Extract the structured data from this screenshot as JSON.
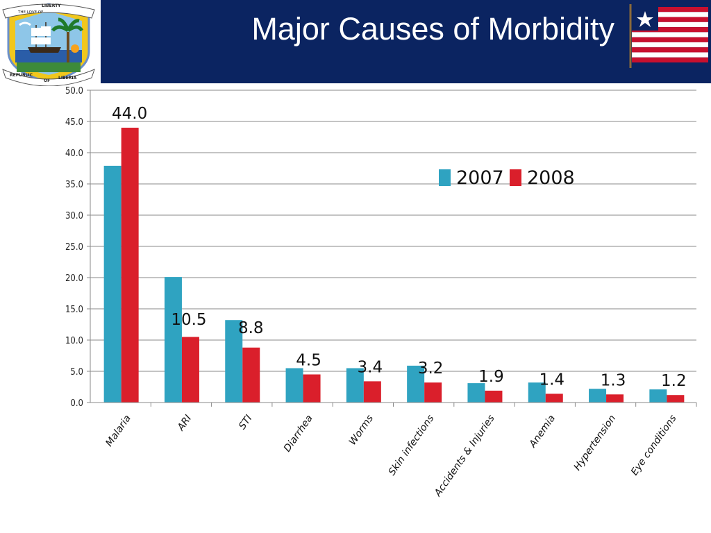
{
  "header": {
    "title": "Major Causes of Morbidity",
    "seal_text": [
      "THE LOVE OF",
      "LIBERTY",
      "REPUBLIC",
      "OF",
      "LIBERIA"
    ]
  },
  "colors": {
    "header_bg": "#0b2461",
    "series_2007": "#2fa3c1",
    "series_2008": "#da1f2b",
    "flag_red": "#c8102e",
    "flag_blue": "#0b2461"
  },
  "chart_data": {
    "type": "bar",
    "categories": [
      "Malaria",
      "ARI",
      "STI",
      "Diarrhea",
      "Worms",
      "Skin infections",
      "Accidents & Injuries",
      "Anemia",
      "Hypertension",
      "Eye conditions"
    ],
    "series": [
      {
        "name": "2007",
        "color": "#2fa3c1",
        "values": [
          37.9,
          20.1,
          13.2,
          5.5,
          5.5,
          5.9,
          3.1,
          3.2,
          2.2,
          2.1
        ]
      },
      {
        "name": "2008",
        "color": "#da1f2b",
        "values": [
          44.0,
          10.5,
          8.8,
          4.5,
          3.4,
          3.2,
          1.9,
          1.4,
          1.3,
          1.2
        ]
      }
    ],
    "data_labels": [
      "44.0",
      "10.5",
      "8.8",
      "4.5",
      "3.4",
      "3.2",
      "1.9",
      "1.4",
      "1.3",
      "1.2"
    ],
    "y_ticks": [
      "0.0",
      "5.0",
      "10.0",
      "15.0",
      "20.0",
      "25.0",
      "30.0",
      "35.0",
      "40.0",
      "45.0",
      "50.0"
    ],
    "ylim": [
      0,
      50
    ],
    "grid": true,
    "legend_position": "top-right"
  }
}
